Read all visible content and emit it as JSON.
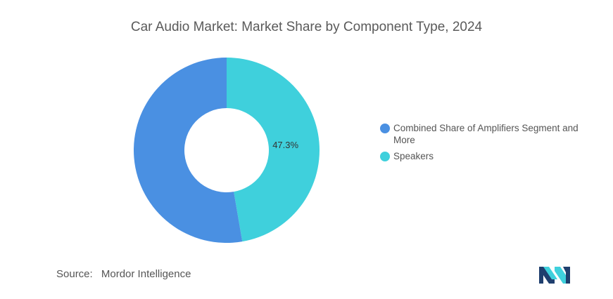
{
  "chart_data": {
    "type": "pie",
    "title": "Car Audio Market: Market Share by Component Type, 2024",
    "slices": [
      {
        "label": "Combined Share of Amplifiers Segment and More",
        "value": 52.7,
        "color": "#4a90e2",
        "data_label": ""
      },
      {
        "label": "Speakers",
        "value": 47.3,
        "color": "#3fd0dc",
        "data_label": "47.3%"
      }
    ],
    "donut": true,
    "legend_position": "right"
  },
  "source": {
    "label": "Source:",
    "text": "Mordor Intelligence"
  },
  "logo": {
    "icon": "mordor-intelligence-logo-icon",
    "colors": [
      "#1f3f6e",
      "#3fd0dc"
    ]
  }
}
